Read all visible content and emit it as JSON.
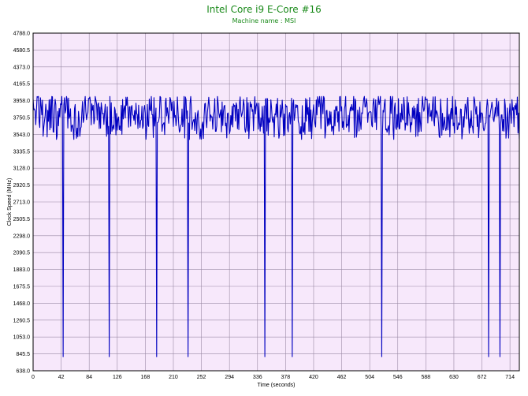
{
  "chart_data": {
    "type": "line",
    "title": "Intel Core i9 E-Core #16",
    "subtitle": "Machine name : MSI",
    "xlabel": "Time (seconds)",
    "ylabel": "Clock Speed (MHz)",
    "xlim": [
      0,
      728
    ],
    "ylim": [
      638.0,
      4788.0
    ],
    "xticks": [
      "0",
      "42",
      "84",
      "126",
      "168",
      "210",
      "252",
      "294",
      "336",
      "378",
      "420",
      "462",
      "504",
      "546",
      "588",
      "630",
      "672",
      "714"
    ],
    "yticks": [
      "4788.0",
      "4580.5",
      "4373.0",
      "4165.5",
      "3958.0",
      "3750.5",
      "3543.0",
      "3335.5",
      "3128.0",
      "2920.5",
      "2713.0",
      "2505.5",
      "2298.0",
      "2090.5",
      "1883.0",
      "1675.5",
      "1468.0",
      "1260.5",
      "1053.0",
      "845.5",
      "638.0"
    ],
    "grid": true,
    "colors": {
      "line": "#0000c0",
      "plot_bg": "#f7e8fb",
      "grid": "#9a8aa5",
      "title": "#1a8a1a"
    },
    "series": [
      {
        "baseline_mhz": 3760,
        "drops": [
          {
            "x": 45,
            "min": 810
          },
          {
            "x": 114,
            "min": 810
          },
          {
            "x": 185,
            "min": 810
          },
          {
            "x": 232,
            "min": 810
          },
          {
            "x": 347,
            "min": 810
          },
          {
            "x": 388,
            "min": 810
          },
          {
            "x": 522,
            "min": 810
          },
          {
            "x": 682,
            "min": 810
          },
          {
            "x": 699,
            "min": 810
          }
        ]
      }
    ]
  }
}
